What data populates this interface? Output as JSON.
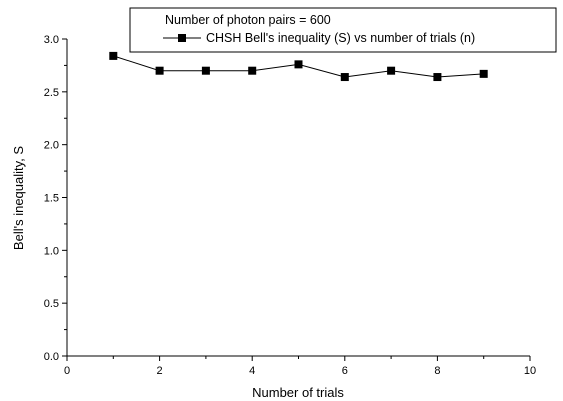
{
  "chart_data": {
    "type": "line",
    "title": "",
    "xlabel": "Number of trials",
    "ylabel": "Bell's inequality, S",
    "xlim": [
      0,
      10
    ],
    "ylim": [
      0.0,
      3.0
    ],
    "xticks": [
      "0",
      "2",
      "4",
      "6",
      "8",
      "10"
    ],
    "yticks": [
      "0.0",
      "0.5",
      "1.0",
      "1.5",
      "2.0",
      "2.5",
      "3.0"
    ],
    "grid": false,
    "legend_position": "top-right",
    "legend": {
      "note": "Number of photon pairs = 600",
      "series_label": "CHSH Bell's inequality (S) vs number of trials (n)"
    },
    "series": [
      {
        "name": "CHSH Bell's inequality (S) vs number of trials (n)",
        "marker": "square",
        "color": "#000000",
        "x": [
          1,
          2,
          3,
          4,
          5,
          6,
          7,
          8,
          9
        ],
        "y": [
          2.84,
          2.7,
          2.7,
          2.7,
          2.76,
          2.64,
          2.7,
          2.64,
          2.67
        ]
      }
    ]
  }
}
